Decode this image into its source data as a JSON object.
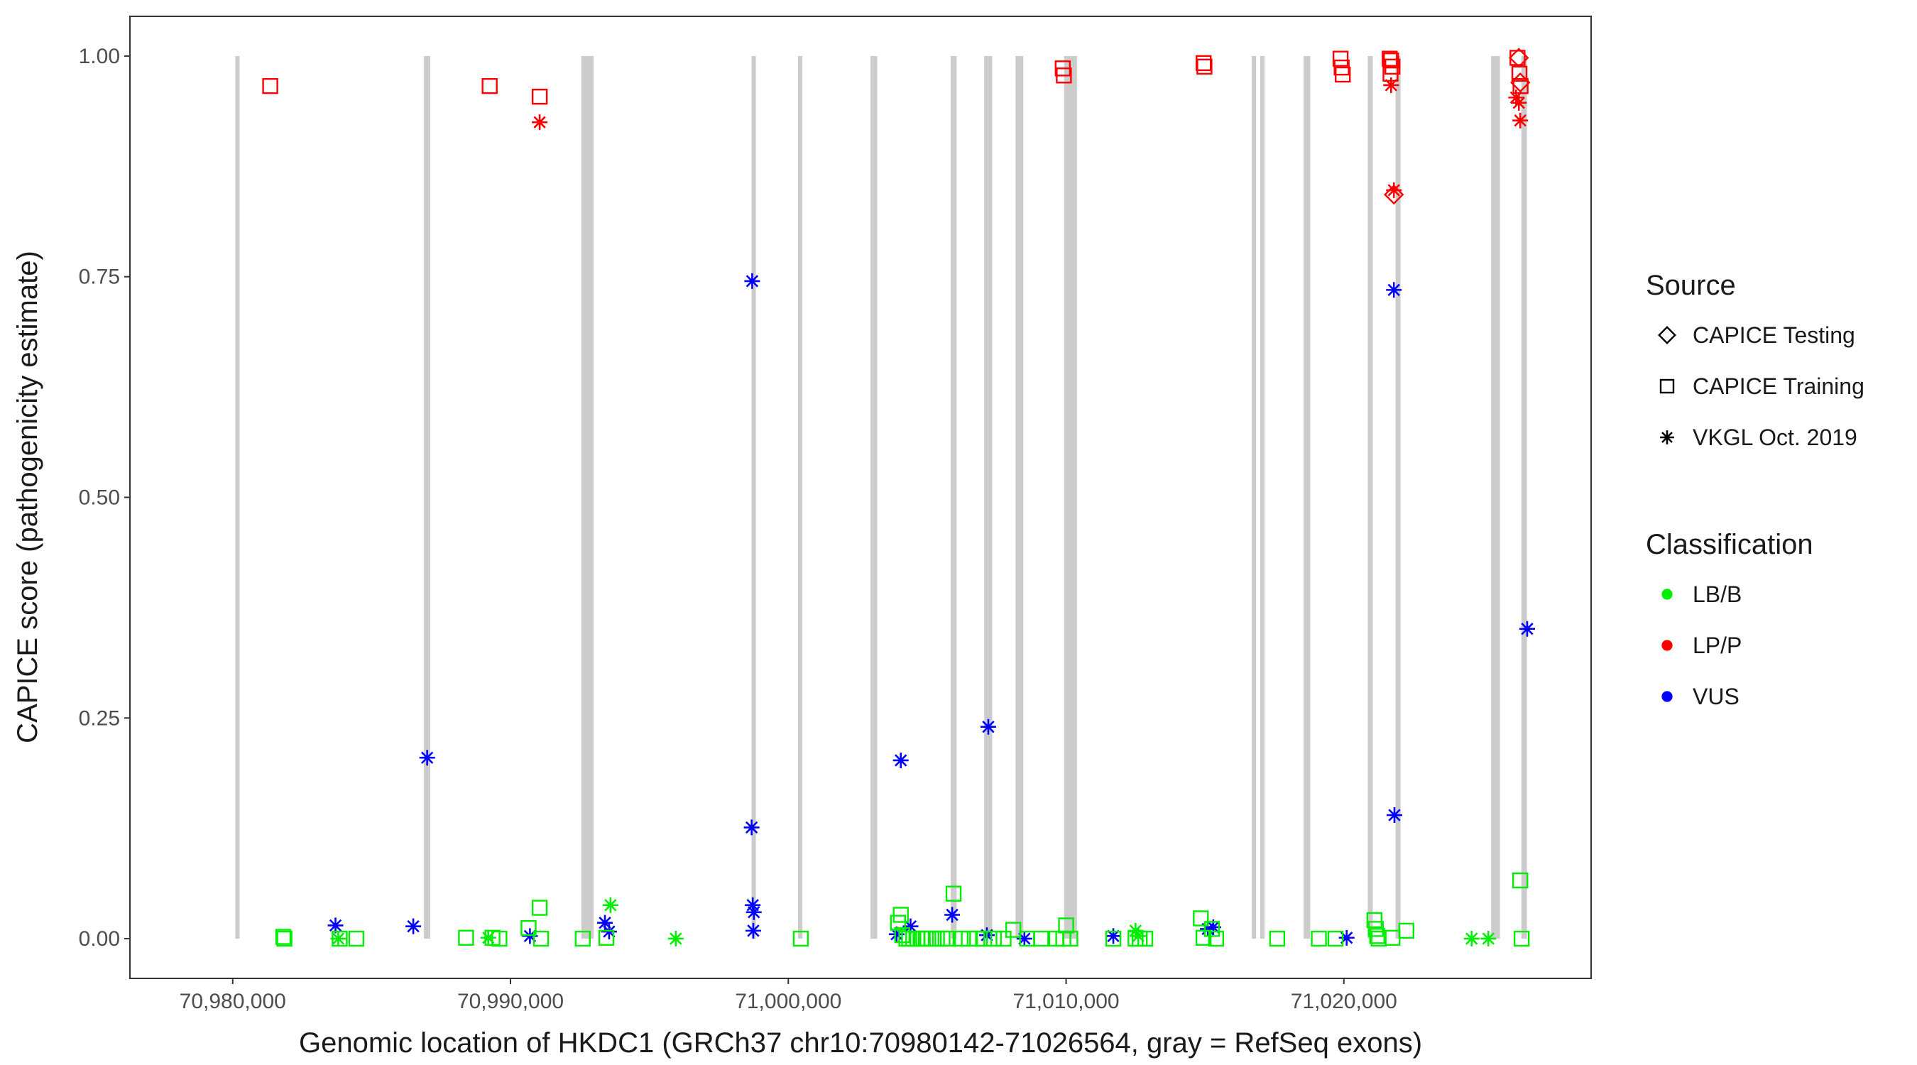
{
  "chart_data": {
    "type": "scatter",
    "xlabel": "Genomic location of HKDC1 (GRCh37 chr10:70980142-71026564, gray = RefSeq exons)",
    "ylabel": "CAPICE score (pathogenicity estimate)",
    "xlim": [
      70976300,
      71028900
    ],
    "ylim": [
      -0.045,
      1.045
    ],
    "x_ticks": [
      70980000,
      70990000,
      71000000,
      71010000,
      71020000
    ],
    "x_tick_labels": [
      "70,980,000",
      "70,990,000",
      "71,000,000",
      "71,010,000",
      "71,020,000"
    ],
    "y_ticks": [
      0,
      0.25,
      0.5,
      0.75,
      1.0
    ],
    "y_tick_labels": [
      "0.00",
      "0.25",
      "0.50",
      "0.75",
      "1.00"
    ],
    "grid": false,
    "exons": [
      [
        70980120,
        70980220
      ],
      [
        70986880,
        70987110
      ],
      [
        70992550,
        70992990
      ],
      [
        70998680,
        70998830
      ],
      [
        71000350,
        71000510
      ],
      [
        71002960,
        71003200
      ],
      [
        71005850,
        71006060
      ],
      [
        71007050,
        71007340
      ],
      [
        71008180,
        71008460
      ],
      [
        71009930,
        71010390
      ],
      [
        71016700,
        71016830
      ],
      [
        71017000,
        71017130
      ],
      [
        71018550,
        71018790
      ],
      [
        71020860,
        71021040
      ],
      [
        71021860,
        71022040
      ],
      [
        71025300,
        71025620
      ],
      [
        71026390,
        71026590
      ]
    ],
    "exon_color": "#cccccc",
    "legend": {
      "position": "right",
      "source_title": "Source",
      "source_entries": [
        {
          "label": "CAPICE Testing",
          "shape": "diamond"
        },
        {
          "label": "CAPICE Training",
          "shape": "square"
        },
        {
          "label": "VKGL Oct. 2019",
          "shape": "asterisk"
        }
      ],
      "class_title": "Classification",
      "class_entries": [
        {
          "label": "LB/B",
          "color": "#00ee00"
        },
        {
          "label": "LP/P",
          "color": "#ff0000"
        },
        {
          "label": "VUS",
          "color": "#0000ff"
        }
      ]
    },
    "series": [
      {
        "source": "CAPICE Testing",
        "classification": "LP/P",
        "shape": "diamond",
        "color": "#ff0000",
        "points": [
          [
            71026300,
            0.998
          ],
          [
            71026350,
            0.97
          ],
          [
            71021800,
            0.843
          ]
        ]
      },
      {
        "source": "CAPICE Training",
        "classification": "LP/P",
        "shape": "square",
        "color": "#ff0000",
        "points": [
          [
            70981350,
            0.966
          ],
          [
            70989250,
            0.966
          ],
          [
            70991050,
            0.954
          ],
          [
            71009880,
            0.986
          ],
          [
            71009920,
            0.978
          ],
          [
            71014950,
            0.992
          ],
          [
            71014980,
            0.988
          ],
          [
            71019880,
            0.997
          ],
          [
            71019920,
            0.987
          ],
          [
            71019960,
            0.979
          ],
          [
            71021650,
            0.997
          ],
          [
            71021700,
            0.995
          ],
          [
            71021750,
            0.988
          ],
          [
            71021680,
            0.98
          ],
          [
            71026250,
            0.998
          ],
          [
            71026320,
            0.98
          ],
          [
            71026360,
            0.966
          ]
        ]
      },
      {
        "source": "VKGL Oct. 2019",
        "classification": "LP/P",
        "shape": "asterisk",
        "color": "#ff0000",
        "points": [
          [
            70991050,
            0.925
          ],
          [
            71021700,
            0.967
          ],
          [
            71021800,
            0.848
          ],
          [
            71026200,
            0.953
          ],
          [
            71026300,
            0.947
          ],
          [
            71026350,
            0.927
          ]
        ]
      },
      {
        "source": "VKGL Oct. 2019",
        "classification": "VUS",
        "shape": "asterisk",
        "color": "#0000ff",
        "points": [
          [
            70983700,
            0.015
          ],
          [
            70986500,
            0.014
          ],
          [
            70987000,
            0.205
          ],
          [
            70990700,
            0.003
          ],
          [
            70993400,
            0.018
          ],
          [
            70993550,
            0.008
          ],
          [
            70998700,
            0.745
          ],
          [
            70998680,
            0.126
          ],
          [
            70998720,
            0.038
          ],
          [
            70998760,
            0.03
          ],
          [
            70998740,
            0.009
          ],
          [
            71004050,
            0.202
          ],
          [
            71003900,
            0.005
          ],
          [
            71004400,
            0.014
          ],
          [
            71005900,
            0.027
          ],
          [
            71007200,
            0.24
          ],
          [
            71007150,
            0.004
          ],
          [
            71008500,
            0.0
          ],
          [
            71011700,
            0.003
          ],
          [
            71015100,
            0.011
          ],
          [
            71015300,
            0.013
          ],
          [
            71020100,
            0.001
          ],
          [
            71021800,
            0.735
          ],
          [
            71021820,
            0.14
          ],
          [
            71026600,
            0.351
          ]
        ]
      },
      {
        "source": "VKGL Oct. 2019",
        "classification": "LB/B",
        "shape": "asterisk",
        "color": "#00ee00",
        "points": [
          [
            70983800,
            0.0
          ],
          [
            70989200,
            0.001
          ],
          [
            70993600,
            0.038
          ],
          [
            70995950,
            0.0
          ],
          [
            71012500,
            0.009
          ],
          [
            71012600,
            0.003
          ],
          [
            71024600,
            0.0
          ],
          [
            71025200,
            0.0
          ]
        ]
      },
      {
        "source": "CAPICE Training",
        "classification": "LB/B",
        "shape": "square",
        "color": "#00ee00",
        "points": [
          [
            70981820,
            0.002
          ],
          [
            70981860,
            0.0
          ],
          [
            70983850,
            0.0
          ],
          [
            70984450,
            0.0
          ],
          [
            70988400,
            0.001
          ],
          [
            70989350,
            0.001
          ],
          [
            70989600,
            0.0
          ],
          [
            70990650,
            0.012
          ],
          [
            70991050,
            0.035
          ],
          [
            70991100,
            0.0
          ],
          [
            70992600,
            0.0
          ],
          [
            70993450,
            0.001
          ],
          [
            71000450,
            0.0
          ],
          [
            71003950,
            0.018
          ],
          [
            71004050,
            0.027
          ],
          [
            71004100,
            0.004
          ],
          [
            71004250,
            0.0
          ],
          [
            71004350,
            0.0
          ],
          [
            71004500,
            0.0
          ],
          [
            71004650,
            0.0
          ],
          [
            71004800,
            0.0
          ],
          [
            71004950,
            0.0
          ],
          [
            71005150,
            0.0
          ],
          [
            71005350,
            0.0
          ],
          [
            71005550,
            0.0
          ],
          [
            71005750,
            0.0
          ],
          [
            71005950,
            0.051
          ],
          [
            71006200,
            0.0
          ],
          [
            71006500,
            0.0
          ],
          [
            71006800,
            0.0
          ],
          [
            71007050,
            0.0
          ],
          [
            71007400,
            0.0
          ],
          [
            71007750,
            0.0
          ],
          [
            71008100,
            0.01
          ],
          [
            71008600,
            0.0
          ],
          [
            71009100,
            0.0
          ],
          [
            71009650,
            0.0
          ],
          [
            71009900,
            0.0
          ],
          [
            71010000,
            0.015
          ],
          [
            71010150,
            0.0
          ],
          [
            71011700,
            0.0
          ],
          [
            71012500,
            0.0
          ],
          [
            71012650,
            0.0
          ],
          [
            71012850,
            0.0
          ],
          [
            71014850,
            0.023
          ],
          [
            71014950,
            0.001
          ],
          [
            71015250,
            0.011
          ],
          [
            71015400,
            0.0
          ],
          [
            71017600,
            0.0
          ],
          [
            71019100,
            0.0
          ],
          [
            71019700,
            0.0
          ],
          [
            71021100,
            0.021
          ],
          [
            71021150,
            0.011
          ],
          [
            71021200,
            0.003
          ],
          [
            71021250,
            0.0
          ],
          [
            71021750,
            0.001
          ],
          [
            71022250,
            0.009
          ],
          [
            71026350,
            0.066
          ],
          [
            71026400,
            0.0
          ]
        ]
      }
    ]
  }
}
